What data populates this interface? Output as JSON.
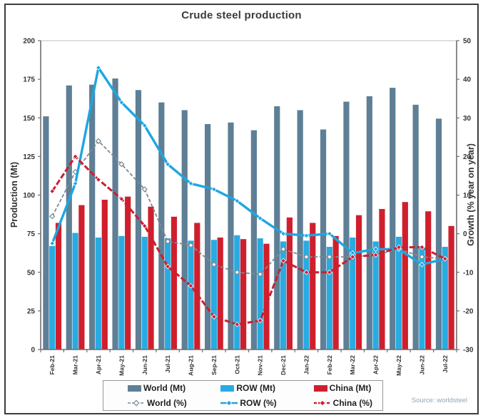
{
  "title": "Crude steel production",
  "source": "Source: worldsteel",
  "chart_data": {
    "type": "bar+line combo, dual axis",
    "title": "Crude steel production",
    "categories": [
      "Feb-21",
      "Mar-21",
      "Apr-21",
      "May-21",
      "Jun-21",
      "Jul-21",
      "Aug-21",
      "Sep-21",
      "Oct-21",
      "Nov-21",
      "Dec-21",
      "Jan-22",
      "Feb-22",
      "Mar-22",
      "Apr-22",
      "May-22",
      "Jun-22",
      "Jul-22"
    ],
    "bar_series": [
      {
        "name": "World (Mt)",
        "axis": "left",
        "color": "#5e7f95",
        "values": [
          151,
          171,
          171.5,
          175.5,
          168,
          160,
          155,
          146,
          147,
          142,
          157.5,
          155,
          142.5,
          160.5,
          164,
          169.5,
          158.5,
          149.5
        ]
      },
      {
        "name": "ROW (Mt)",
        "axis": "left",
        "color": "#29abe2",
        "values": [
          67,
          75.5,
          72.5,
          73.5,
          73,
          72,
          70.5,
          71,
          74,
          72,
          70,
          70.5,
          66.5,
          72.5,
          70,
          73,
          66.5,
          66.5
        ]
      },
      {
        "name": "China (Mt)",
        "axis": "left",
        "color": "#cf1f2d",
        "values": [
          82,
          93.5,
          97,
          99,
          92.5,
          86,
          82,
          72.5,
          71.5,
          68.5,
          85.5,
          82,
          73.5,
          87,
          91,
          95.5,
          89.5,
          80
        ]
      }
    ],
    "line_series": [
      {
        "name": "World (%)",
        "axis": "right",
        "color": "#7d8a94",
        "dashed": true,
        "marker": "open-diamond",
        "values": [
          4.5,
          16,
          24,
          18,
          11.5,
          -2,
          -3,
          -8,
          -10,
          -10.5,
          -4,
          -6,
          -6,
          -6,
          -5.5,
          -4,
          -6,
          -6.5
        ]
      },
      {
        "name": "ROW (%)",
        "axis": "right",
        "color": "#1ea6e0",
        "dashed": false,
        "marker": "diamond",
        "values": [
          -2.5,
          13,
          43,
          34,
          28,
          18,
          13,
          11.5,
          8.5,
          4,
          0,
          -0.5,
          0,
          -5,
          -4,
          -4,
          -8,
          -6.5
        ]
      },
      {
        "name": "China (%)",
        "axis": "right",
        "color": "#c82031",
        "dashed": true,
        "marker": "diamond",
        "values": [
          11,
          20,
          14,
          9,
          2,
          -8.5,
          -13.5,
          -21.5,
          -23.5,
          -22.5,
          -7,
          -10,
          -10,
          -6,
          -5.5,
          -3.5,
          -3.5,
          -6.5
        ]
      }
    ],
    "left_axis": {
      "label": "Production (Mt)",
      "min": 0,
      "max": 200,
      "step": 25,
      "ticks": [
        0,
        25,
        50,
        75,
        100,
        125,
        150,
        175,
        200
      ]
    },
    "right_axis": {
      "label": "Growth (% year on year)",
      "min": -30,
      "max": 50,
      "step": 10,
      "ticks": [
        -30,
        -20,
        -10,
        0,
        10,
        20,
        30,
        40,
        50
      ]
    },
    "legend": {
      "position": "bottom",
      "row1": [
        "World (Mt)",
        "ROW (Mt)",
        "China (Mt)"
      ],
      "row2": [
        "World (%)",
        "ROW (%)",
        "China (%)"
      ]
    },
    "gridlines": false,
    "source": "Source: worldsteel"
  }
}
